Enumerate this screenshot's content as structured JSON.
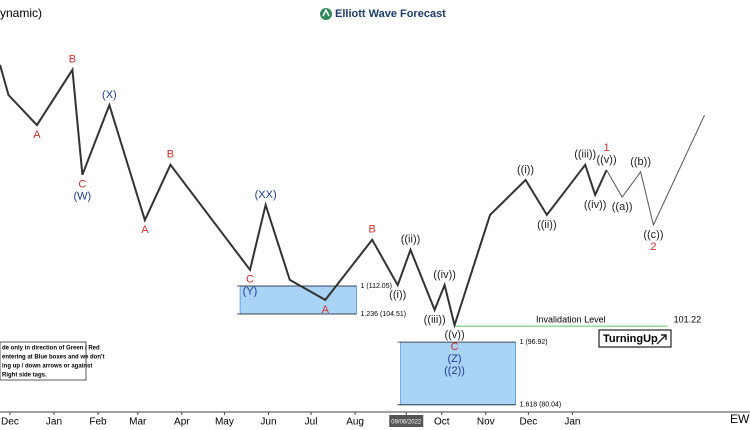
{
  "chart_data": {
    "type": "line",
    "indicator_text": "ynamic)",
    "brand": "Elliott Wave Forecast",
    "corner_text": "EW",
    "button_text": "TurningUp",
    "note_lines": [
      "de only in direction of Green / Red",
      "entering at Blue boxes and we don't",
      "ing up / down arrows or against",
      "Right side tags."
    ],
    "xlim": [
      -7,
      521
    ],
    "ylim": [
      78.1,
      189.1
    ],
    "xticks": [
      {
        "value": 0,
        "label": "Dec"
      },
      {
        "value": 31,
        "label": "Jan"
      },
      {
        "value": 62,
        "label": "Feb"
      },
      {
        "value": 90,
        "label": "Mar"
      },
      {
        "value": 121,
        "label": "Apr"
      },
      {
        "value": 151,
        "label": "May"
      },
      {
        "value": 182,
        "label": "Jun"
      },
      {
        "value": 212,
        "label": "Jul"
      },
      {
        "value": 243,
        "label": "Aug"
      },
      {
        "value": 279,
        "label": "09/06/2022"
      },
      {
        "value": 304,
        "label": "Oct"
      },
      {
        "value": 335,
        "label": "Nov"
      },
      {
        "value": 365,
        "label": "Dec"
      },
      {
        "value": 396,
        "label": "Jan"
      }
    ],
    "highlight_tick": 9,
    "series": [
      {
        "color": "#333333",
        "x": [
          -7,
          -1,
          19,
          44,
          51,
          70,
          95,
          113,
          169,
          180,
          197,
          222,
          255,
          273,
          282,
          299,
          306,
          313,
          338,
          363,
          378,
          405,
          412,
          420
        ],
        "values": [
          171.6,
          163.5,
          155.4,
          170.3,
          142,
          160.8,
          129.8,
          144.7,
          116.4,
          133.9,
          113.7,
          108.3,
          124.5,
          112.3,
          121.8,
          105.6,
          112.3,
          101.5,
          131.2,
          140.6,
          131.2,
          144.7,
          136.6,
          143.3
        ],
        "labels": [
          null,
          null,
          [
            {
              "text": "A",
              "color": "#d0312d"
            }
          ],
          [
            {
              "text": "B",
              "color": "#d0312d"
            }
          ],
          [
            {
              "text": "C",
              "color": "#d0312d"
            },
            {
              "text": "(W)",
              "color": "#1f3a93"
            }
          ],
          [
            {
              "text": "(X)",
              "color": "#1f3a93"
            }
          ],
          [
            {
              "text": "A",
              "color": "#d0312d"
            }
          ],
          [
            {
              "text": "B",
              "color": "#d0312d"
            }
          ],
          [
            {
              "text": "C",
              "color": "#d0312d"
            },
            {
              "text": "(Y)",
              "color": "#1f3a93"
            }
          ],
          [
            {
              "text": "(XX)",
              "color": "#1f3a93"
            }
          ],
          null,
          [
            {
              "text": "A",
              "color": "#d0312d"
            }
          ],
          [
            {
              "text": "B",
              "color": "#d0312d"
            }
          ],
          [
            {
              "text": "((i))",
              "color": "#222222"
            }
          ],
          [
            {
              "text": "((ii))",
              "color": "#222222"
            }
          ],
          [
            {
              "text": "((iii))",
              "color": "#222222"
            }
          ],
          [
            {
              "text": "((iv))",
              "color": "#222222"
            }
          ],
          [
            {
              "text": "((v))",
              "color": "#222222"
            },
            {
              "text": "C",
              "color": "#d0312d"
            },
            {
              "text": "(Z)",
              "color": "#1f3a93"
            },
            {
              "text": "((2))",
              "color": "#1f3a93"
            }
          ],
          null,
          [
            {
              "text": "((i))",
              "color": "#222222"
            }
          ],
          [
            {
              "text": "((ii))",
              "color": "#222222"
            }
          ],
          [
            {
              "text": "((iii))",
              "color": "#222222"
            }
          ],
          [
            {
              "text": "((iv))",
              "color": "#222222"
            }
          ],
          [
            {
              "text": "1",
              "color": "#d0312d"
            },
            {
              "text": "((v))",
              "color": "#222222"
            }
          ]
        ]
      },
      {
        "color": "#555555",
        "x": [
          420,
          431,
          444,
          453,
          489
        ],
        "values": [
          143.3,
          136,
          142.8,
          128.5,
          158.1
        ],
        "labels": [
          null,
          [
            {
              "text": "((a))",
              "color": "#222222"
            }
          ],
          [
            {
              "text": "((b))",
              "color": "#222222"
            }
          ],
          [
            {
              "text": "((c))",
              "color": "#222222"
            },
            {
              "text": "2",
              "color": "#d0312d"
            }
          ],
          null
        ]
      }
    ],
    "zones": [
      {
        "color": "#a9d4f5",
        "x_range": [
          162,
          244
        ],
        "levels": [
          {
            "value": 112.05,
            "label": "1 (112.05)"
          },
          {
            "value": 104.51,
            "label": "1.236 (104.51)"
          }
        ]
      },
      {
        "color": "#a9d4f5",
        "x_range": [
          275,
          356
        ],
        "levels": [
          {
            "value": 96.92,
            "label": "1 (96.92)"
          },
          {
            "value": 80.04,
            "label": "1.618 (80.04)"
          }
        ]
      }
    ],
    "invalidation": {
      "text": "Invalidation Level",
      "value": 101.22,
      "x_range": [
        313,
        463
      ],
      "color": "#6fcf6f"
    }
  }
}
